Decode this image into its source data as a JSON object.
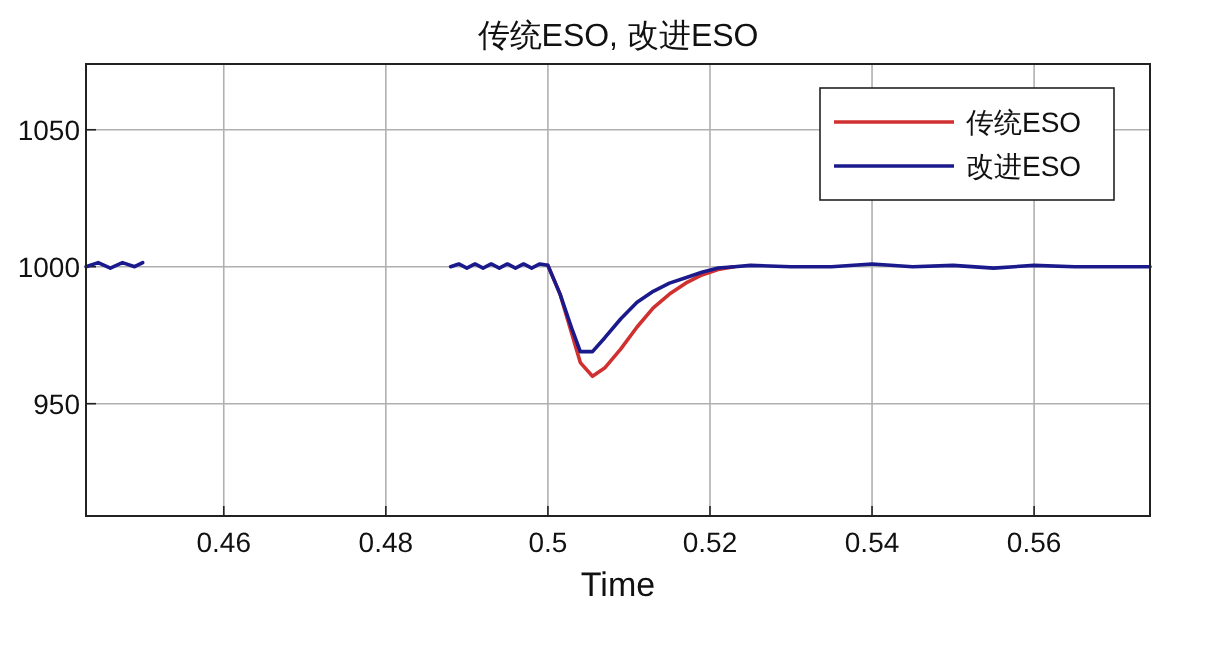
{
  "chart_data": {
    "type": "line",
    "title": "传统ESO, 改进ESO",
    "xlabel": "Time",
    "series": [
      {
        "name": "传统ESO",
        "color": "#d03030",
        "x": [
          0.5,
          0.5015,
          0.503,
          0.504,
          0.5055,
          0.507,
          0.509,
          0.511,
          0.513,
          0.515,
          0.517,
          0.519,
          0.521,
          0.523
        ],
        "values": [
          1000.5,
          990,
          975,
          965,
          960,
          963,
          970,
          978,
          985,
          990,
          994,
          997,
          999,
          1000
        ]
      },
      {
        "color": "#1a1a8c",
        "x": [
          0.443,
          0.4445,
          0.446,
          0.4475,
          0.449,
          0.45
        ],
        "values": [
          1000,
          1001.5,
          999.5,
          1001.5,
          1000,
          1001.5
        ]
      },
      {
        "name": "改进ESO",
        "color": "#1a1a8c",
        "x": [
          0.488,
          0.489,
          0.49,
          0.491,
          0.492,
          0.493,
          0.494,
          0.495,
          0.496,
          0.497,
          0.498,
          0.499,
          0.5,
          0.5015,
          0.503,
          0.504,
          0.5055,
          0.507,
          0.509,
          0.511,
          0.513,
          0.515,
          0.517,
          0.519,
          0.521,
          0.523,
          0.525,
          0.53,
          0.535,
          0.54,
          0.545,
          0.55,
          0.555,
          0.56,
          0.565,
          0.5743
        ],
        "values": [
          1000,
          1001,
          999.5,
          1001,
          999.5,
          1001,
          999.5,
          1001,
          999.5,
          1001,
          999.5,
          1001,
          1000.5,
          990,
          977,
          969,
          969,
          974,
          981,
          987,
          991,
          994,
          996,
          998,
          999.5,
          1000,
          1000.5,
          1000,
          1000,
          1001,
          1000,
          1000.5,
          999.5,
          1000.5,
          1000,
          1000
        ]
      }
    ],
    "xlim": [
      0.443,
      0.5743
    ],
    "ylim": [
      909,
      1074
    ],
    "xticks": [
      0.46,
      0.48,
      0.5,
      0.52,
      0.54,
      0.56
    ],
    "yticks": [
      950,
      1000,
      1050
    ],
    "grid": true,
    "legend": "top right"
  }
}
